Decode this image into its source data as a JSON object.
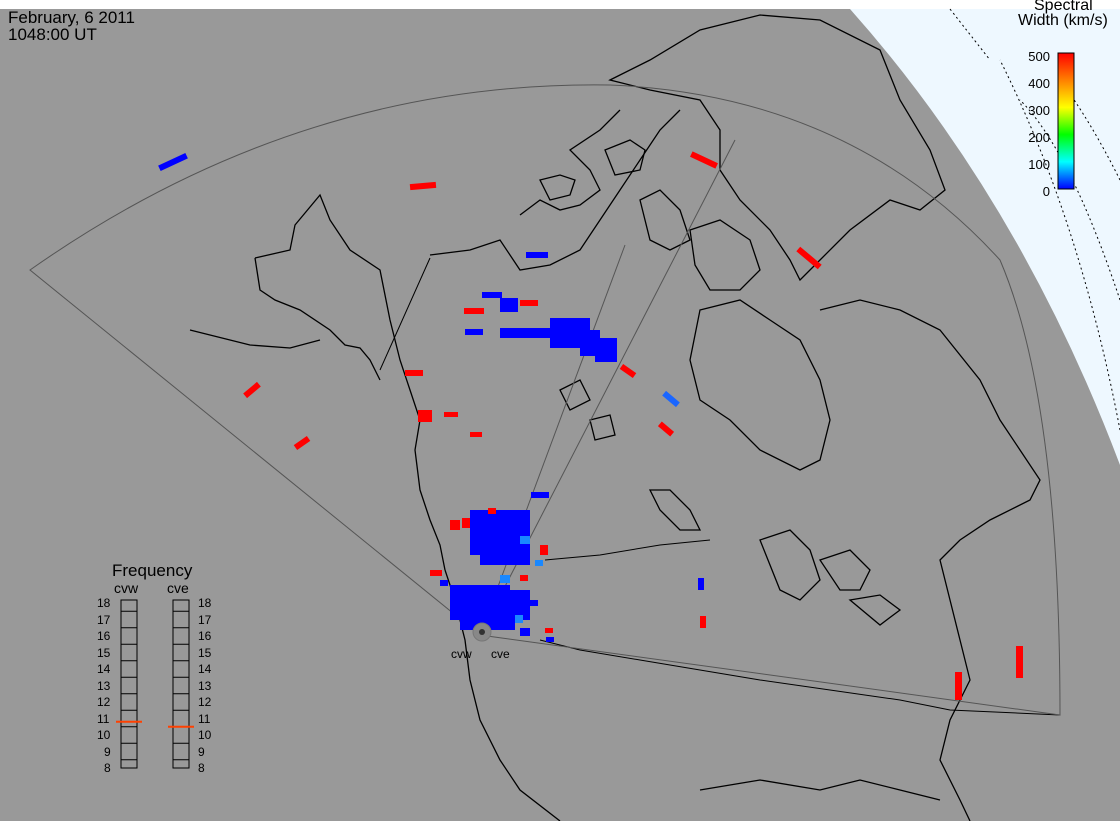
{
  "header": {
    "date": "February, 6 2011",
    "time": "1048:00 UT"
  },
  "colorbar": {
    "title_line1": "Spectral",
    "title_line2": "Width (km/s)",
    "ticks": [
      "500",
      "400",
      "300",
      "200",
      "100",
      "0"
    ],
    "min": 0,
    "max": 500,
    "colors": [
      "#0000ff",
      "#00ffff",
      "#00ff00",
      "#ffff00",
      "#ff8000",
      "#ff0000"
    ]
  },
  "frequency_panel": {
    "title": "Frequency",
    "radars": [
      {
        "name": "cvw",
        "selected_mhz": 10.8
      },
      {
        "name": "cve",
        "selected_mhz": 10.5
      }
    ],
    "scale": [
      "18",
      "17",
      "16",
      "15",
      "14",
      "13",
      "12",
      "11",
      "10",
      "9",
      "8"
    ],
    "marker_color": "#ff4000"
  },
  "radar_sites": [
    "cvw",
    "cve"
  ],
  "colors": {
    "background": "#999999",
    "ocean_polar": "#eef8ff",
    "coastline": "#000000",
    "fov_outline": "#555555"
  }
}
